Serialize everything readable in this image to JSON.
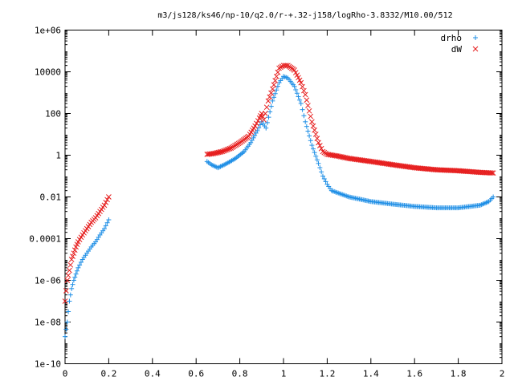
{
  "chart_data": {
    "type": "scatter",
    "title": "m3/js128/ks46/np-10/q2.0/r-+.32-j158/logRho-3.8332/M10.00/512",
    "xlabel": "",
    "ylabel": "",
    "xlim": [
      0,
      2
    ],
    "ylim": [
      1e-10,
      1000000.0
    ],
    "yscale": "log",
    "grid": false,
    "legend_position": "top-right",
    "x_ticks": [
      "0",
      "0.2",
      "0.4",
      "0.6",
      "0.8",
      "1",
      "1.2",
      "1.4",
      "1.6",
      "1.8",
      "2"
    ],
    "y_ticks": [
      "1e-10",
      "1e-08",
      "1e-06",
      "0.0001",
      "0.01",
      "1",
      "100",
      "10000",
      "1e+06"
    ],
    "series": [
      {
        "name": "drho",
        "marker": "plus",
        "color": "#1f8fe6",
        "segments": [
          {
            "x": [
              0.0,
              0.01,
              0.02,
              0.03,
              0.04,
              0.05,
              0.06,
              0.08,
              0.1,
              0.12,
              0.14,
              0.16,
              0.18,
              0.2
            ],
            "y": [
              2e-09,
              1e-08,
              1e-07,
              4e-07,
              1e-06,
              2e-06,
              4e-06,
              1e-05,
              2e-05,
              4e-05,
              7e-05,
              0.00015,
              0.0003,
              0.0008
            ]
          },
          {
            "x": [
              0.65,
              0.67,
              0.7,
              0.74,
              0.78,
              0.82,
              0.85,
              0.88,
              0.9,
              0.92,
              0.95,
              0.98,
              1.0,
              1.02,
              1.05,
              1.08,
              1.1,
              1.13,
              1.16,
              1.18,
              1.2,
              1.22,
              1.3,
              1.4,
              1.5,
              1.6,
              1.7,
              1.8,
              1.9,
              1.94,
              1.96
            ],
            "y": [
              0.5,
              0.35,
              0.25,
              0.4,
              0.7,
              1.5,
              4,
              15,
              40,
              20,
              400,
              3000,
              6000,
              5000,
              2000,
              300,
              40,
              3,
              0.4,
              0.1,
              0.04,
              0.02,
              0.01,
              0.006,
              0.0045,
              0.0035,
              0.003,
              0.003,
              0.004,
              0.006,
              0.01
            ]
          }
        ]
      },
      {
        "name": "dW",
        "marker": "cross",
        "color": "#e61e1e",
        "segments": [
          {
            "x": [
              0.0,
              0.01,
              0.02,
              0.03,
              0.04,
              0.05,
              0.06,
              0.08,
              0.1,
              0.12,
              0.14,
              0.16,
              0.18,
              0.2
            ],
            "y": [
              1e-07,
              1e-06,
              3e-06,
              1e-05,
              2e-05,
              4e-05,
              7e-05,
              0.00015,
              0.0003,
              0.0006,
              0.001,
              0.002,
              0.004,
              0.01
            ]
          },
          {
            "x": [
              0.65,
              0.68,
              0.72,
              0.76,
              0.8,
              0.84,
              0.87,
              0.89,
              0.9,
              0.91,
              0.93,
              0.95,
              0.98,
              1.0,
              1.02,
              1.05,
              1.08,
              1.1,
              1.13,
              1.16,
              1.18,
              1.2,
              1.25,
              1.3,
              1.4,
              1.5,
              1.6,
              1.7,
              1.8,
              1.9,
              1.96
            ],
            "y": [
              1.1,
              1.2,
              1.5,
              2.2,
              4,
              8,
              25,
              60,
              100,
              50,
              400,
              1500,
              15000,
              20000,
              20000,
              12000,
              3000,
              800,
              40,
              4,
              1.5,
              1.1,
              0.9,
              0.7,
              0.5,
              0.35,
              0.25,
              0.2,
              0.18,
              0.15,
              0.14
            ]
          }
        ]
      }
    ]
  }
}
